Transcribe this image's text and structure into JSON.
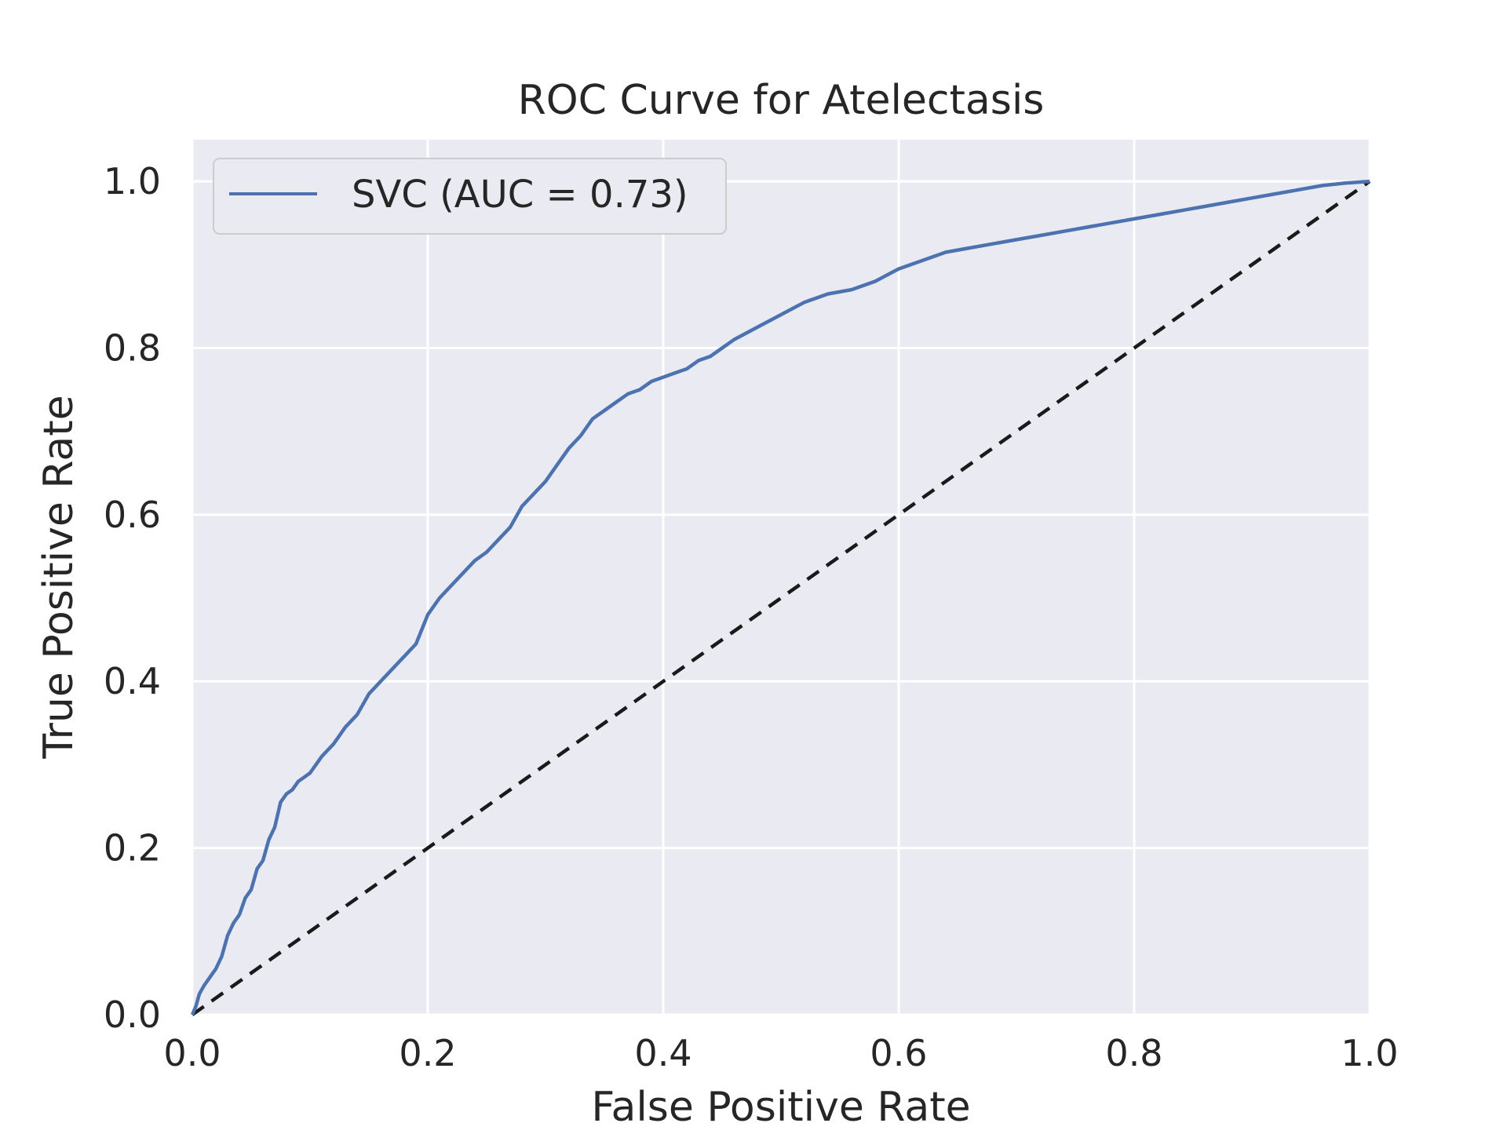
{
  "chart_data": {
    "type": "line",
    "title": "ROC Curve for Atelectasis",
    "xlabel": "False Positive Rate",
    "ylabel": "True Positive Rate",
    "xlim": [
      0.0,
      1.0
    ],
    "ylim": [
      0.0,
      1.05
    ],
    "grid": true,
    "legend_position": "upper-left",
    "x_ticks": [
      "0.0",
      "0.2",
      "0.4",
      "0.6",
      "0.8",
      "1.0"
    ],
    "y_ticks": [
      "0.0",
      "0.2",
      "0.4",
      "0.6",
      "0.8",
      "1.0"
    ],
    "series": [
      {
        "name": "SVC (AUC = 0.73)",
        "color": "#4c72b0",
        "x": [
          0.0,
          0.003,
          0.006,
          0.01,
          0.015,
          0.02,
          0.025,
          0.03,
          0.035,
          0.04,
          0.045,
          0.05,
          0.055,
          0.06,
          0.065,
          0.07,
          0.075,
          0.08,
          0.085,
          0.09,
          0.095,
          0.1,
          0.11,
          0.12,
          0.13,
          0.14,
          0.15,
          0.16,
          0.17,
          0.18,
          0.19,
          0.2,
          0.21,
          0.22,
          0.23,
          0.24,
          0.25,
          0.26,
          0.27,
          0.28,
          0.29,
          0.3,
          0.31,
          0.32,
          0.33,
          0.34,
          0.35,
          0.36,
          0.37,
          0.38,
          0.39,
          0.4,
          0.41,
          0.42,
          0.43,
          0.44,
          0.45,
          0.46,
          0.48,
          0.5,
          0.52,
          0.54,
          0.56,
          0.58,
          0.6,
          0.62,
          0.64,
          0.66,
          0.68,
          0.7,
          0.72,
          0.74,
          0.76,
          0.78,
          0.8,
          0.82,
          0.84,
          0.86,
          0.88,
          0.9,
          0.92,
          0.94,
          0.96,
          0.98,
          1.0
        ],
        "y": [
          0.0,
          0.01,
          0.025,
          0.035,
          0.045,
          0.055,
          0.07,
          0.095,
          0.11,
          0.12,
          0.14,
          0.15,
          0.175,
          0.185,
          0.21,
          0.225,
          0.255,
          0.265,
          0.27,
          0.28,
          0.285,
          0.29,
          0.31,
          0.325,
          0.345,
          0.36,
          0.385,
          0.4,
          0.415,
          0.43,
          0.445,
          0.48,
          0.5,
          0.515,
          0.53,
          0.545,
          0.555,
          0.57,
          0.585,
          0.61,
          0.625,
          0.64,
          0.66,
          0.68,
          0.695,
          0.715,
          0.725,
          0.735,
          0.745,
          0.75,
          0.76,
          0.765,
          0.77,
          0.775,
          0.785,
          0.79,
          0.8,
          0.81,
          0.825,
          0.84,
          0.855,
          0.865,
          0.87,
          0.88,
          0.895,
          0.905,
          0.915,
          0.92,
          0.925,
          0.93,
          0.935,
          0.94,
          0.945,
          0.95,
          0.955,
          0.96,
          0.965,
          0.97,
          0.975,
          0.98,
          0.985,
          0.99,
          0.995,
          0.998,
          1.0
        ]
      },
      {
        "name": "",
        "color": "#1a1a1a",
        "style": "dashed",
        "x": [
          0.0,
          1.0
        ],
        "y": [
          0.0,
          1.0
        ]
      }
    ]
  }
}
